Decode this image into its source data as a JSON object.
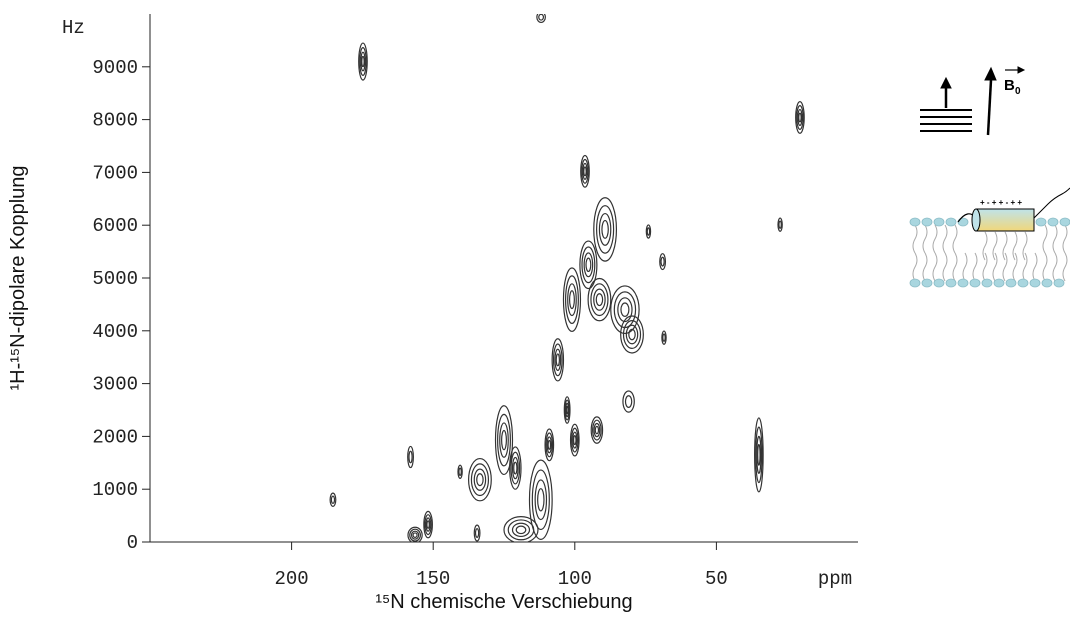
{
  "chart_data": {
    "type": "contour",
    "x_label": "¹⁵N chemische Verschiebung",
    "y_label": "¹H-¹⁵N-dipolare Kopplung",
    "x_unit": "ppm",
    "y_unit": "Hz",
    "xlim": [
      250,
      0
    ],
    "ylim": [
      0,
      10000
    ],
    "xticks": [
      200,
      150,
      100,
      50
    ],
    "yticks": [
      0,
      1000,
      2000,
      3000,
      4000,
      5000,
      6000,
      7000,
      8000,
      9000
    ],
    "color": "#333333",
    "peaks": {
      "x": [
        174.8,
        111.9,
        20.5,
        96.4,
        27.5,
        74,
        69,
        89.3,
        95.2,
        91.3,
        82.3,
        79.8,
        101,
        106,
        68.5,
        81,
        102.7,
        100,
        92.2,
        109,
        125,
        133.5,
        121,
        112,
        119,
        158,
        140.5,
        185.4,
        151.8,
        156.4,
        134.5,
        35
      ],
      "y": [
        9100,
        9940,
        8040,
        7020,
        6010,
        5880,
        5310,
        5920,
        5250,
        4590,
        4400,
        3930,
        4590,
        3450,
        3870,
        2660,
        2500,
        1930,
        2120,
        1840,
        1930,
        1180,
        1400,
        800,
        230,
        1610,
        1330,
        800,
        330,
        130,
        170,
        1650
      ],
      "widths": [
        3,
        3,
        3,
        3,
        1.5,
        1.5,
        2,
        8,
        6,
        8,
        10,
        8,
        6,
        4,
        1.5,
        4,
        2,
        3,
        4,
        3,
        6,
        8,
        4,
        8,
        12,
        2,
        1.5,
        2,
        3,
        5,
        2,
        3
      ],
      "heights": [
        700,
        200,
        600,
        600,
        250,
        250,
        300,
        1200,
        900,
        800,
        900,
        700,
        1200,
        800,
        250,
        400,
        500,
        600,
        500,
        600,
        1300,
        800,
        800,
        1500,
        500,
        400,
        250,
        250,
        500,
        300,
        300,
        1400
      ]
    }
  },
  "diagram": {
    "field_label": "B",
    "field_subscript": "0",
    "charges": "+ - + + - + +"
  }
}
